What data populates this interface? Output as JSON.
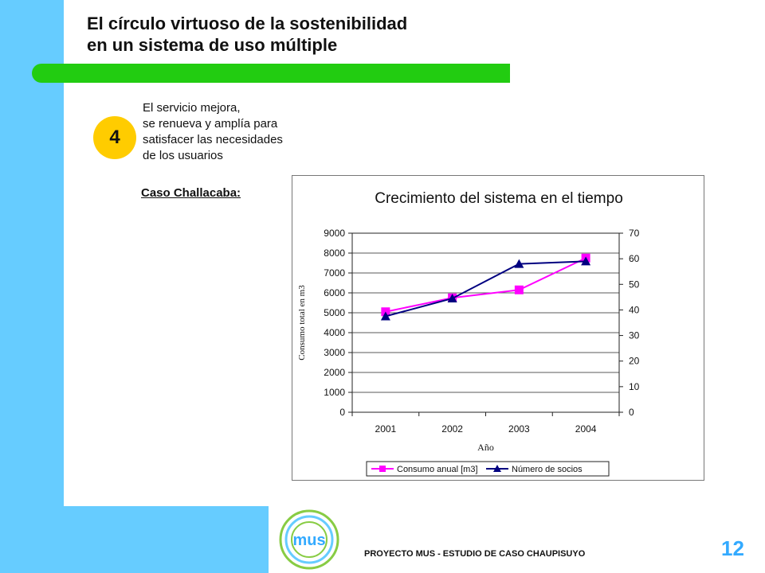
{
  "slide": {
    "title_line1": "El círculo virtuoso de la sostenibilidad",
    "title_line2": "en un sistema de uso múltiple",
    "step_number": "4",
    "step_text": [
      "El servicio mejora,",
      "se renueva y amplía para",
      "satisfacer las necesidades",
      "de los usuarios"
    ],
    "case_title": "Caso Challacaba:",
    "footer": "PROYECTO MUS - ESTUDIO DE CASO CHAUPISUYO",
    "page_number": "12",
    "logo_text": "mus"
  },
  "colors": {
    "side_band": "#66ccff",
    "green_bar": "#22cc11",
    "step_circle": "#ffcc00",
    "page_number": "#33aaff",
    "series_consumo": "#ff00ff",
    "series_socios": "#000080"
  },
  "chart_data": {
    "type": "line",
    "title": "Crecimiento del sistema en el tiempo",
    "xlabel": "Año",
    "ylabel": "Consumo total en m3",
    "categories": [
      "2001",
      "2002",
      "2003",
      "2004"
    ],
    "y_left": {
      "ylim": [
        0,
        9000
      ],
      "ticks": [
        0,
        1000,
        2000,
        3000,
        4000,
        5000,
        6000,
        7000,
        8000,
        9000
      ]
    },
    "y_right": {
      "ylim": [
        0,
        70
      ],
      "ticks": [
        0,
        10,
        20,
        30,
        40,
        50,
        60,
        70
      ]
    },
    "series": [
      {
        "name": "Consumo anual [m3]",
        "axis": "left",
        "marker": "square",
        "color": "#ff00ff",
        "values": [
          5050,
          5750,
          6150,
          7750
        ]
      },
      {
        "name": "Número de socios",
        "axis": "right",
        "marker": "triangle",
        "color": "#000080",
        "values": [
          37.5,
          44.5,
          58,
          59
        ]
      }
    ],
    "grid": true,
    "legend": "bottom"
  }
}
